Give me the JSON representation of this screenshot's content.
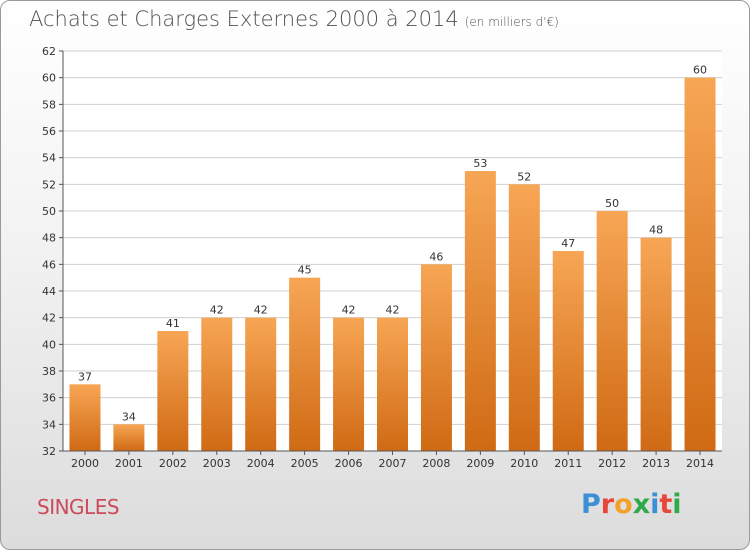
{
  "header": {
    "title": "Achats et Charges Externes 2000 à 2014",
    "subtitle": "(en milliers d'€)"
  },
  "footer": {
    "commune": "SINGLES",
    "brand_letters": [
      "P",
      "r",
      "o",
      "x",
      "i",
      "t",
      "i"
    ],
    "brand_colors": [
      "#3a8fd6",
      "#e8453c",
      "#f2a12c",
      "#2eaa4a",
      "#3a8fd6",
      "#e8453c",
      "#2eaa4a"
    ]
  },
  "chart_data": {
    "type": "bar",
    "title": "Achats et Charges Externes 2000 à 2014",
    "categories": [
      "2000",
      "2001",
      "2002",
      "2003",
      "2004",
      "2005",
      "2006",
      "2007",
      "2008",
      "2009",
      "2010",
      "2011",
      "2012",
      "2013",
      "2014"
    ],
    "values": [
      37,
      34,
      41,
      42,
      42,
      45,
      42,
      42,
      46,
      53,
      52,
      47,
      50,
      48,
      60
    ],
    "ylim": [
      32,
      62
    ],
    "yticks": [
      32,
      34,
      36,
      38,
      40,
      42,
      44,
      46,
      48,
      50,
      52,
      54,
      56,
      58,
      60,
      62
    ],
    "grid": true,
    "colors": {
      "bar_top": "#f7a655",
      "bar_bottom": "#d06a14",
      "grid": "#cfcfcf"
    }
  }
}
